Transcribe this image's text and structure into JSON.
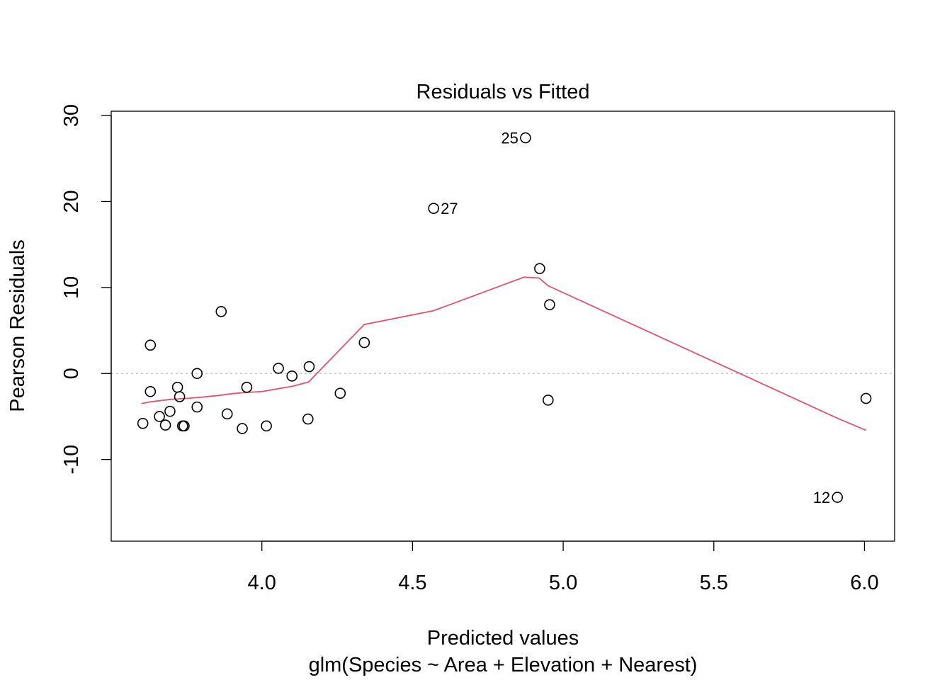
{
  "chart_data": {
    "type": "scatter",
    "title": "Residuals vs Fitted",
    "xlabel": "Predicted values",
    "subtitle": "glm(Species ~ Area + Elevation + Nearest)",
    "ylabel": "Pearson Residuals",
    "xlim": [
      3.5,
      6.1
    ],
    "ylim": [
      -19.5,
      30.5
    ],
    "xticks": [
      4.0,
      4.5,
      5.0,
      5.5,
      6.0
    ],
    "xtick_labels": [
      "4.0",
      "4.5",
      "5.0",
      "5.5",
      "6.0"
    ],
    "yticks": [
      -10,
      0,
      10,
      20,
      30
    ],
    "ytick_labels": [
      "-10",
      "0",
      "10",
      "20",
      "30"
    ],
    "reference_line": {
      "y": 0,
      "style": "dotted",
      "color": "#bebebe"
    },
    "points": [
      {
        "x": 3.605,
        "y": -5.8
      },
      {
        "x": 3.63,
        "y": 3.3
      },
      {
        "x": 3.63,
        "y": -2.1
      },
      {
        "x": 3.66,
        "y": -5.0
      },
      {
        "x": 3.68,
        "y": -6.0
      },
      {
        "x": 3.695,
        "y": -4.4
      },
      {
        "x": 3.72,
        "y": -1.6
      },
      {
        "x": 3.727,
        "y": -2.7
      },
      {
        "x": 3.737,
        "y": -6.1
      },
      {
        "x": 3.742,
        "y": -6.1
      },
      {
        "x": 3.785,
        "y": -3.9
      },
      {
        "x": 3.785,
        "y": 0.0
      },
      {
        "x": 3.865,
        "y": 7.2
      },
      {
        "x": 3.885,
        "y": -4.7
      },
      {
        "x": 3.935,
        "y": -6.4
      },
      {
        "x": 3.95,
        "y": -1.6
      },
      {
        "x": 4.015,
        "y": -6.1
      },
      {
        "x": 4.055,
        "y": 0.6
      },
      {
        "x": 4.1,
        "y": -0.3
      },
      {
        "x": 4.153,
        "y": -5.3
      },
      {
        "x": 4.157,
        "y": 0.8
      },
      {
        "x": 4.26,
        "y": -2.3
      },
      {
        "x": 4.34,
        "y": 3.6
      },
      {
        "x": 4.57,
        "y": 19.2,
        "label": "27",
        "label_side": "right"
      },
      {
        "x": 4.875,
        "y": 27.4,
        "label": "25",
        "label_side": "left"
      },
      {
        "x": 4.922,
        "y": 12.2
      },
      {
        "x": 4.95,
        "y": -3.1
      },
      {
        "x": 4.955,
        "y": 8.0
      },
      {
        "x": 5.91,
        "y": -14.4,
        "label": "12",
        "label_side": "left"
      },
      {
        "x": 6.005,
        "y": -2.9
      }
    ],
    "smooth_line": {
      "color": "#DF536B",
      "x": [
        3.6,
        3.63,
        3.7,
        3.75,
        3.8,
        3.86,
        3.9,
        3.95,
        4.0,
        4.05,
        4.1,
        4.155,
        4.34,
        4.57,
        4.87,
        4.92,
        4.95,
        5.91,
        6.005
      ],
      "y": [
        -3.5,
        -3.3,
        -3.0,
        -2.9,
        -2.75,
        -2.55,
        -2.35,
        -2.2,
        -2.1,
        -1.8,
        -1.5,
        -1.0,
        5.7,
        7.3,
        11.2,
        11.1,
        10.2,
        -5.2,
        -6.6
      ]
    }
  }
}
